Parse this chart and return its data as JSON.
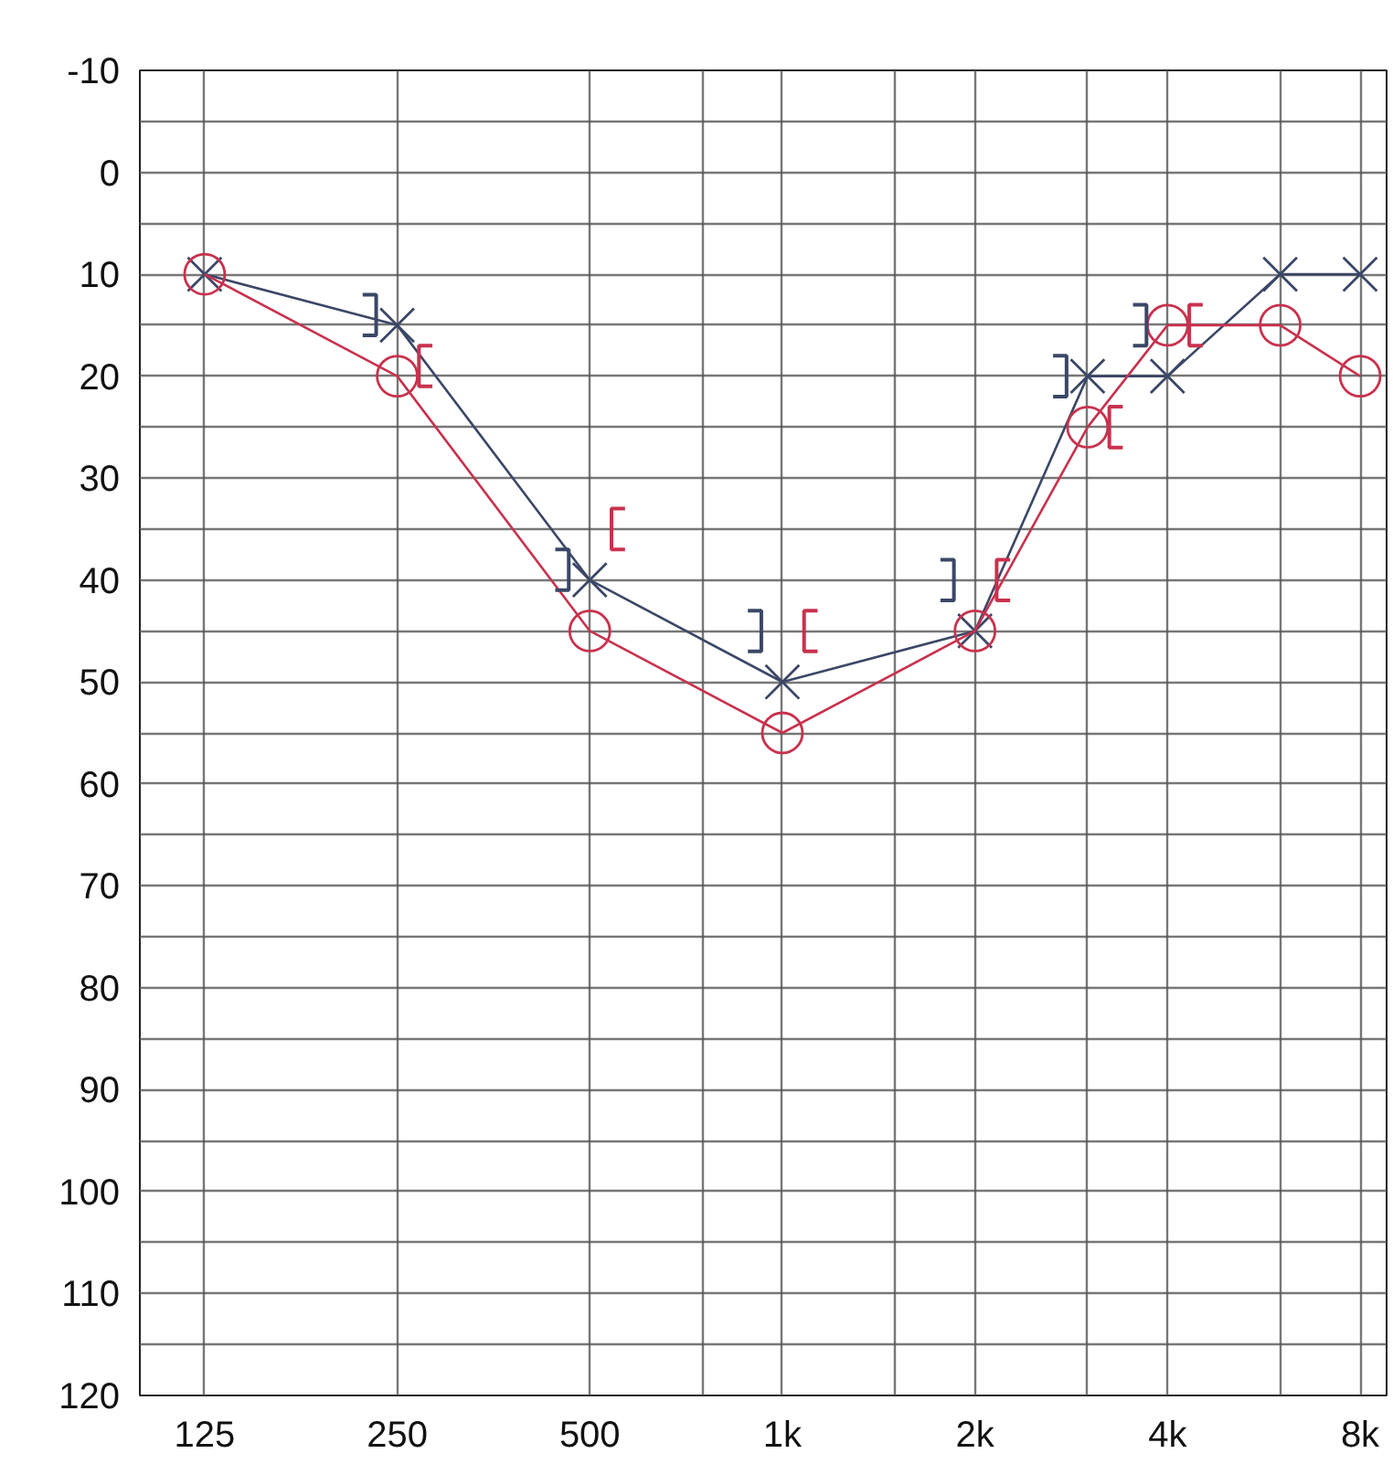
{
  "chart_data": {
    "type": "line",
    "log": "x",
    "xlim": [
      99,
      8800
    ],
    "ylim": [
      120,
      -10
    ],
    "xticks": [
      125,
      {
        "value": 250,
        "label": "250"
      },
      500,
      {
        "value": 750,
        "label": null
      },
      {
        "value": 1000,
        "label": "1k"
      },
      {
        "value": 1500,
        "label": null
      },
      {
        "value": 2000,
        "label": "2k"
      },
      {
        "value": 3000,
        "label": null
      },
      {
        "value": 4000,
        "label": "4k"
      },
      {
        "value": 6000,
        "label": null
      },
      {
        "value": 8000,
        "label": "8k"
      }
    ],
    "yticks": [
      -10,
      {
        "value": -5,
        "label": null
      },
      0,
      {
        "value": 5,
        "label": null
      },
      10,
      {
        "value": 15,
        "label": null
      },
      20,
      {
        "value": 25,
        "label": null
      },
      30,
      {
        "value": 35,
        "label": null
      },
      40,
      {
        "value": 45,
        "label": null
      },
      50,
      {
        "value": 55,
        "label": null
      },
      60,
      {
        "value": 65,
        "label": null
      },
      70,
      {
        "value": 75,
        "label": null
      },
      80,
      {
        "value": 85,
        "label": null
      },
      90,
      {
        "value": 95,
        "label": null
      },
      100,
      {
        "value": 105,
        "label": null
      },
      110,
      {
        "value": 115,
        "label": null
      },
      120
    ],
    "grid": true,
    "series": [
      {
        "marker": "cross",
        "color": "#3b4766",
        "x": [
          125,
          250,
          500,
          1000,
          2000,
          3000,
          4000,
          6000,
          8000
        ],
        "values": [
          10,
          15,
          40,
          50,
          45,
          20,
          20,
          10,
          10
        ]
      },
      {
        "marker": "circle",
        "color": "#c8324e",
        "x": [
          125,
          250,
          500,
          1000,
          2000,
          3000,
          4000,
          6000,
          8000
        ],
        "values": [
          10,
          20,
          45,
          55,
          45,
          25,
          15,
          15,
          20
        ]
      },
      {
        "type": "scatter",
        "color": "#3b4766",
        "x": [
          227,
          454,
          908,
          1816,
          2724,
          3632
        ],
        "values": [
          14,
          39,
          45,
          40,
          20,
          15
        ]
      },
      {
        "type": "scatter",
        "color": "#c8324e",
        "x": [
          276,
          552,
          1104,
          2208,
          3312,
          4416
        ],
        "values": [
          19,
          35,
          45,
          40,
          25,
          15
        ]
      }
    ]
  }
}
